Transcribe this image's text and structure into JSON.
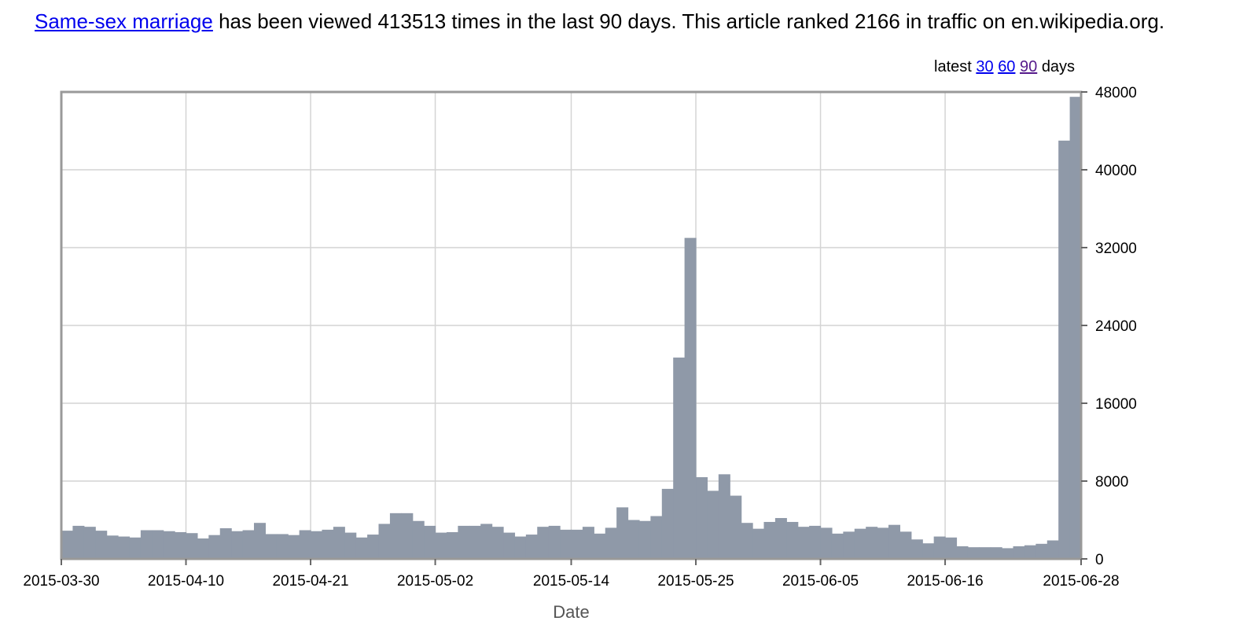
{
  "header": {
    "article_link": "Same-sex marriage",
    "summary": " has been viewed 413513 times in the last 90 days. This article ranked 2166 in traffic on en.wikipedia.org."
  },
  "range": {
    "prefix": "latest",
    "opt30": "30",
    "opt60": "60",
    "opt90": "90",
    "suffix": "days"
  },
  "colors": {
    "bar": "#8f99a8",
    "grid": "#d4d4d4",
    "frame": "#999999",
    "link": "#0000ee"
  },
  "chart_data": {
    "type": "bar",
    "title": "",
    "xlabel": "Date",
    "ylabel": "",
    "ylim": [
      0,
      48000
    ],
    "yticks": [
      0,
      8000,
      16000,
      24000,
      32000,
      40000,
      48000
    ],
    "xticks": [
      "2015-03-30",
      "2015-04-10",
      "2015-04-21",
      "2015-05-02",
      "2015-05-14",
      "2015-05-25",
      "2015-06-05",
      "2015-06-16",
      "2015-06-28"
    ],
    "x_start": "2015-03-30",
    "x_end": "2015-06-28",
    "grid": true,
    "y_axis_side": "right",
    "values": [
      2900,
      3400,
      3300,
      2900,
      2400,
      2300,
      2200,
      2950,
      2950,
      2850,
      2750,
      2650,
      2100,
      2450,
      3150,
      2850,
      2950,
      3700,
      2550,
      2550,
      2450,
      2950,
      2850,
      3000,
      3300,
      2700,
      2200,
      2500,
      3600,
      4700,
      4700,
      3900,
      3400,
      2700,
      2750,
      3400,
      3400,
      3600,
      3300,
      2700,
      2300,
      2500,
      3300,
      3400,
      3000,
      3000,
      3300,
      2600,
      3200,
      5300,
      4000,
      3900,
      4400,
      7200,
      20700,
      33000,
      8400,
      7000,
      8700,
      6500,
      3700,
      3100,
      3800,
      4200,
      3800,
      3300,
      3400,
      3200,
      2600,
      2800,
      3100,
      3300,
      3200,
      3500,
      2800,
      2000,
      1600,
      2300,
      2200,
      1300,
      1200,
      1200,
      1200,
      1100,
      1300,
      1400,
      1550,
      1900,
      43000,
      47500
    ]
  }
}
